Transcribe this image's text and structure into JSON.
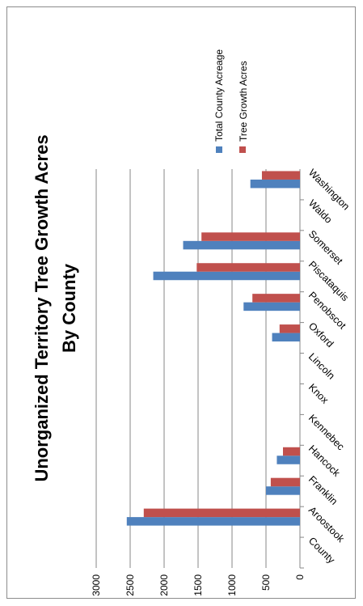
{
  "chart_data": {
    "type": "bar",
    "title": "Unorganized Territory Tree Growth Acres",
    "subtitle": "By County",
    "categories": [
      "County",
      "Aroostook",
      "Franklin",
      "Hancock",
      "Kennebec",
      "Knox",
      "Lincoln",
      "Oxford",
      "Penobscot",
      "Piscataquis",
      "Somerset",
      "Waldo",
      "Washington"
    ],
    "series": [
      {
        "name": "Total County Acreage",
        "color": "#4f81bd",
        "values": [
          0,
          2550,
          500,
          340,
          0,
          0,
          0,
          410,
          830,
          2160,
          1720,
          0,
          730
        ]
      },
      {
        "name": "Tree Growth Acres",
        "color": "#c0504d",
        "values": [
          0,
          2300,
          430,
          250,
          0,
          0,
          0,
          300,
          700,
          1520,
          1450,
          0,
          560
        ]
      }
    ],
    "yticks": [
      0,
      500,
      1000,
      1500,
      2000,
      2500,
      3000
    ],
    "ylim": [
      0,
      3000
    ],
    "grid": true,
    "legend": "right",
    "orientation": "rotated-90-clockwise"
  }
}
